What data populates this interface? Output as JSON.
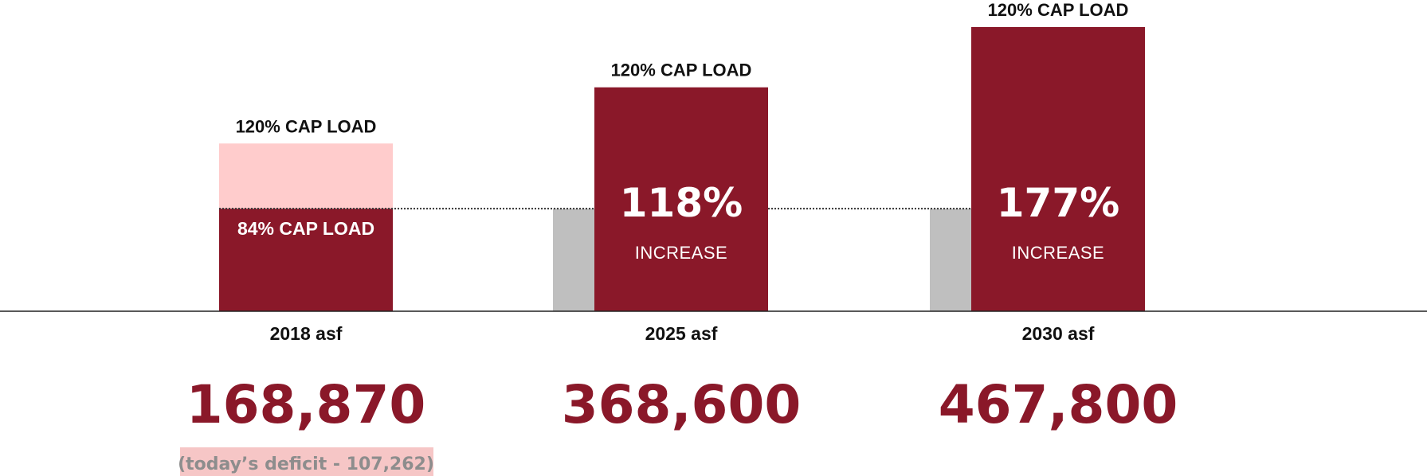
{
  "colors": {
    "bar": "#8a1829",
    "overflow": "#ffcccc",
    "baseline_bar": "#bfbfbf",
    "axis": "#222222",
    "dotted_line": "#333333",
    "note_bg": "#f6c6c6",
    "note_text": "#8d8d8d"
  },
  "chart_data": {
    "type": "bar",
    "unit": "asf",
    "categories": [
      "2018 asf",
      "2025 asf",
      "2030 asf"
    ],
    "values": [
      168870,
      368600,
      467800
    ],
    "value_labels": [
      "168,870",
      "368,600",
      "467,800"
    ],
    "top_labels": [
      "120% CAP LOAD",
      "120% CAP LOAD",
      "120% CAP LOAD"
    ],
    "reference_line": {
      "label": "84% CAP LOAD",
      "value": 168870
    },
    "overflow_segment": {
      "category": "2018 asf",
      "from": 168870,
      "to": 276132
    },
    "increases": [
      {
        "category": "2025 asf",
        "pct": "118%",
        "label": "INCREASE"
      },
      {
        "category": "2030 asf",
        "pct": "177%",
        "label": "INCREASE"
      }
    ],
    "notes": [
      "(today’s deficit - 107,262)"
    ],
    "ylim": [
      0,
      467800
    ],
    "grid": false,
    "legend": "none"
  }
}
